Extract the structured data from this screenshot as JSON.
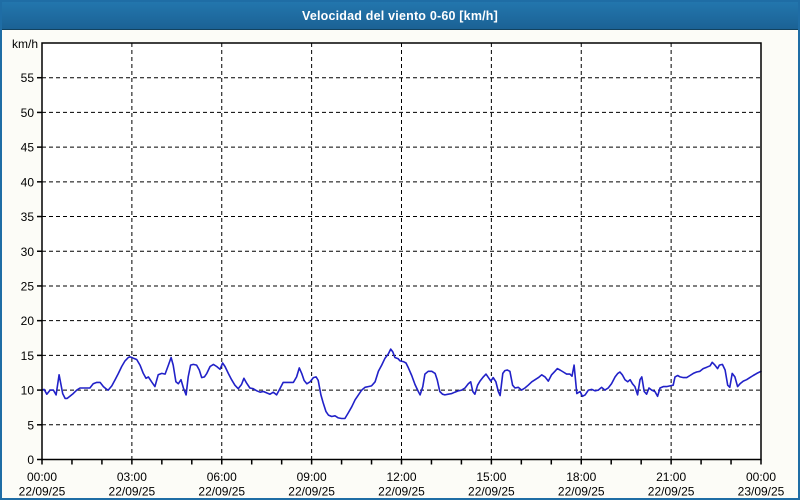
{
  "header": {
    "title": "Velocidad del viento 0-60 [km/h]"
  },
  "colors": {
    "header_bg": "#1f6da5",
    "header_border": "#12425f",
    "widget_border": "#1f6da5",
    "page_bg": "#fcfcf7",
    "plot_bg": "#ffffff",
    "grid": "#000000",
    "axis": "#000000",
    "text": "#000000",
    "series": "#2121c8"
  },
  "chart_data": {
    "type": "line",
    "title": "Velocidad del viento 0-60 [km/h]",
    "ylabel": "km/h",
    "xlabel": "",
    "y_min": 0,
    "y_max": 60,
    "y_tick_step": 5,
    "x_hours_span": 24,
    "grid": "dashed",
    "legend_position": "none",
    "x_ticks": [
      {
        "hour": 0,
        "time": "00:00",
        "date": "22/09/25"
      },
      {
        "hour": 3,
        "time": "03:00",
        "date": "22/09/25"
      },
      {
        "hour": 6,
        "time": "06:00",
        "date": "22/09/25"
      },
      {
        "hour": 9,
        "time": "09:00",
        "date": "22/09/25"
      },
      {
        "hour": 12,
        "time": "12:00",
        "date": "22/09/25"
      },
      {
        "hour": 15,
        "time": "15:00",
        "date": "22/09/25"
      },
      {
        "hour": 18,
        "time": "18:00",
        "date": "22/09/25"
      },
      {
        "hour": 21,
        "time": "21:00",
        "date": "22/09/25"
      },
      {
        "hour": 24,
        "time": "00:00",
        "date": "23/09/25"
      }
    ],
    "series": [
      {
        "name": "Velocidad del viento",
        "color": "#2121c8",
        "points": [
          [
            0,
            10.0
          ],
          [
            0.07,
            10.1
          ],
          [
            0.16,
            9.4
          ],
          [
            0.27,
            10.0
          ],
          [
            0.38,
            10.0
          ],
          [
            0.47,
            9.3
          ],
          [
            0.57,
            12.2
          ],
          [
            0.69,
            9.5
          ],
          [
            0.77,
            8.8
          ],
          [
            0.84,
            8.8
          ],
          [
            0.93,
            9.1
          ],
          [
            1.04,
            9.5
          ],
          [
            1.16,
            10.0
          ],
          [
            1.27,
            10.3
          ],
          [
            1.38,
            10.3
          ],
          [
            1.49,
            10.3
          ],
          [
            1.6,
            10.3
          ],
          [
            1.71,
            10.9
          ],
          [
            1.83,
            11.1
          ],
          [
            1.94,
            11.1
          ],
          [
            2.05,
            10.5
          ],
          [
            2.16,
            10.1
          ],
          [
            2.21,
            10.0
          ],
          [
            2.33,
            10.6
          ],
          [
            2.44,
            11.5
          ],
          [
            2.55,
            12.4
          ],
          [
            2.66,
            13.4
          ],
          [
            2.77,
            14.2
          ],
          [
            2.88,
            14.7
          ],
          [
            2.94,
            14.8
          ],
          [
            3.05,
            14.6
          ],
          [
            3.16,
            14.4
          ],
          [
            3.27,
            13.6
          ],
          [
            3.38,
            12.4
          ],
          [
            3.47,
            11.7
          ],
          [
            3.55,
            11.9
          ],
          [
            3.66,
            11.2
          ],
          [
            3.77,
            10.5
          ],
          [
            3.88,
            12.2
          ],
          [
            4.0,
            12.4
          ],
          [
            4.11,
            12.3
          ],
          [
            4.22,
            13.6
          ],
          [
            4.31,
            14.7
          ],
          [
            4.38,
            13.6
          ],
          [
            4.47,
            11.2
          ],
          [
            4.55,
            10.9
          ],
          [
            4.64,
            11.5
          ],
          [
            4.72,
            10.3
          ],
          [
            4.81,
            9.3
          ],
          [
            4.88,
            11.9
          ],
          [
            4.96,
            13.6
          ],
          [
            5.05,
            13.7
          ],
          [
            5.16,
            13.6
          ],
          [
            5.25,
            12.9
          ],
          [
            5.33,
            11.8
          ],
          [
            5.42,
            11.9
          ],
          [
            5.5,
            12.4
          ],
          [
            5.61,
            13.4
          ],
          [
            5.72,
            13.7
          ],
          [
            5.83,
            13.4
          ],
          [
            5.94,
            13.0
          ],
          [
            6.03,
            13.9
          ],
          [
            6.11,
            13.4
          ],
          [
            6.22,
            12.4
          ],
          [
            6.33,
            11.5
          ],
          [
            6.44,
            10.7
          ],
          [
            6.55,
            10.2
          ],
          [
            6.66,
            10.8
          ],
          [
            6.74,
            11.7
          ],
          [
            6.83,
            11.0
          ],
          [
            6.94,
            10.3
          ],
          [
            7.05,
            10.2
          ],
          [
            7.17,
            9.9
          ],
          [
            7.28,
            9.7
          ],
          [
            7.39,
            9.8
          ],
          [
            7.5,
            9.6
          ],
          [
            7.61,
            9.4
          ],
          [
            7.72,
            9.7
          ],
          [
            7.83,
            9.3
          ],
          [
            7.94,
            10.2
          ],
          [
            8.05,
            11.1
          ],
          [
            8.17,
            11.1
          ],
          [
            8.28,
            11.1
          ],
          [
            8.39,
            11.1
          ],
          [
            8.5,
            11.9
          ],
          [
            8.59,
            13.2
          ],
          [
            8.67,
            12.4
          ],
          [
            8.75,
            11.4
          ],
          [
            8.84,
            10.9
          ],
          [
            8.95,
            11.2
          ],
          [
            9.06,
            11.8
          ],
          [
            9.15,
            11.9
          ],
          [
            9.22,
            11.4
          ],
          [
            9.31,
            9.3
          ],
          [
            9.39,
            8.1
          ],
          [
            9.48,
            6.9
          ],
          [
            9.56,
            6.4
          ],
          [
            9.67,
            6.2
          ],
          [
            9.78,
            6.3
          ],
          [
            9.89,
            6.0
          ],
          [
            10.0,
            5.9
          ],
          [
            10.11,
            5.9
          ],
          [
            10.22,
            6.7
          ],
          [
            10.34,
            7.6
          ],
          [
            10.45,
            8.6
          ],
          [
            10.56,
            9.3
          ],
          [
            10.67,
            10.0
          ],
          [
            10.78,
            10.4
          ],
          [
            10.89,
            10.5
          ],
          [
            11.0,
            10.6
          ],
          [
            11.12,
            11.2
          ],
          [
            11.23,
            12.7
          ],
          [
            11.34,
            13.6
          ],
          [
            11.45,
            14.6
          ],
          [
            11.56,
            15.2
          ],
          [
            11.64,
            15.9
          ],
          [
            11.71,
            15.5
          ],
          [
            11.78,
            14.7
          ],
          [
            11.89,
            14.5
          ],
          [
            11.95,
            14.2
          ],
          [
            12.06,
            14.1
          ],
          [
            12.15,
            13.9
          ],
          [
            12.23,
            13.2
          ],
          [
            12.34,
            12.1
          ],
          [
            12.45,
            10.8
          ],
          [
            12.56,
            9.8
          ],
          [
            12.62,
            9.3
          ],
          [
            12.71,
            10.5
          ],
          [
            12.78,
            12.3
          ],
          [
            12.89,
            12.7
          ],
          [
            13.01,
            12.7
          ],
          [
            13.12,
            12.4
          ],
          [
            13.19,
            11.5
          ],
          [
            13.28,
            9.8
          ],
          [
            13.37,
            9.4
          ],
          [
            13.45,
            9.3
          ],
          [
            13.56,
            9.4
          ],
          [
            13.67,
            9.5
          ],
          [
            13.78,
            9.7
          ],
          [
            13.9,
            9.9
          ],
          [
            14.01,
            10.0
          ],
          [
            14.12,
            10.3
          ],
          [
            14.23,
            10.9
          ],
          [
            14.31,
            11.2
          ],
          [
            14.38,
            9.8
          ],
          [
            14.45,
            9.4
          ],
          [
            14.54,
            10.7
          ],
          [
            14.62,
            11.3
          ],
          [
            14.73,
            11.9
          ],
          [
            14.82,
            12.3
          ],
          [
            14.9,
            11.8
          ],
          [
            14.98,
            11.3
          ],
          [
            15.06,
            11.8
          ],
          [
            15.15,
            11.2
          ],
          [
            15.23,
            9.8
          ],
          [
            15.29,
            9.2
          ],
          [
            15.38,
            12.4
          ],
          [
            15.45,
            12.8
          ],
          [
            15.53,
            12.9
          ],
          [
            15.62,
            12.7
          ],
          [
            15.71,
            10.7
          ],
          [
            15.79,
            10.3
          ],
          [
            15.9,
            10.4
          ],
          [
            16.01,
            10.0
          ],
          [
            16.12,
            10.3
          ],
          [
            16.23,
            10.7
          ],
          [
            16.35,
            11.2
          ],
          [
            16.46,
            11.5
          ],
          [
            16.57,
            11.8
          ],
          [
            16.68,
            12.2
          ],
          [
            16.79,
            11.9
          ],
          [
            16.9,
            11.3
          ],
          [
            17.01,
            12.2
          ],
          [
            17.12,
            12.7
          ],
          [
            17.2,
            13.1
          ],
          [
            17.29,
            12.9
          ],
          [
            17.4,
            12.6
          ],
          [
            17.51,
            12.3
          ],
          [
            17.62,
            12.3
          ],
          [
            17.69,
            12.0
          ],
          [
            17.76,
            13.6
          ],
          [
            17.85,
            9.5
          ],
          [
            17.96,
            9.8
          ],
          [
            18.04,
            9.1
          ],
          [
            18.13,
            9.3
          ],
          [
            18.24,
            10.0
          ],
          [
            18.35,
            10.1
          ],
          [
            18.46,
            9.9
          ],
          [
            18.57,
            10.0
          ],
          [
            18.68,
            10.4
          ],
          [
            18.79,
            10.0
          ],
          [
            18.9,
            10.3
          ],
          [
            19.01,
            10.9
          ],
          [
            19.13,
            11.9
          ],
          [
            19.22,
            12.4
          ],
          [
            19.29,
            12.6
          ],
          [
            19.37,
            12.2
          ],
          [
            19.46,
            11.5
          ],
          [
            19.55,
            11.2
          ],
          [
            19.63,
            11.5
          ],
          [
            19.71,
            10.9
          ],
          [
            19.79,
            10.5
          ],
          [
            19.88,
            9.3
          ],
          [
            19.96,
            11.5
          ],
          [
            20.02,
            11.9
          ],
          [
            20.1,
            9.8
          ],
          [
            20.18,
            9.4
          ],
          [
            20.26,
            10.3
          ],
          [
            20.35,
            10.0
          ],
          [
            20.46,
            9.8
          ],
          [
            20.55,
            9.1
          ],
          [
            20.63,
            10.3
          ],
          [
            20.74,
            10.5
          ],
          [
            20.85,
            10.5
          ],
          [
            20.96,
            10.6
          ],
          [
            21.07,
            10.7
          ],
          [
            21.13,
            11.9
          ],
          [
            21.22,
            12.1
          ],
          [
            21.3,
            11.9
          ],
          [
            21.41,
            11.8
          ],
          [
            21.52,
            11.8
          ],
          [
            21.63,
            12.1
          ],
          [
            21.74,
            12.4
          ],
          [
            21.85,
            12.6
          ],
          [
            21.96,
            12.7
          ],
          [
            22.07,
            13.1
          ],
          [
            22.19,
            13.3
          ],
          [
            22.3,
            13.5
          ],
          [
            22.37,
            14.0
          ],
          [
            22.46,
            13.6
          ],
          [
            22.55,
            13.1
          ],
          [
            22.61,
            13.6
          ],
          [
            22.71,
            13.7
          ],
          [
            22.8,
            12.9
          ],
          [
            22.89,
            10.7
          ],
          [
            22.96,
            10.4
          ],
          [
            23.04,
            12.4
          ],
          [
            23.13,
            11.9
          ],
          [
            23.22,
            10.5
          ],
          [
            23.3,
            10.9
          ],
          [
            23.41,
            11.3
          ],
          [
            23.52,
            11.5
          ],
          [
            23.63,
            11.8
          ],
          [
            23.74,
            12.1
          ],
          [
            23.86,
            12.4
          ],
          [
            24.0,
            12.7
          ]
        ]
      }
    ]
  }
}
